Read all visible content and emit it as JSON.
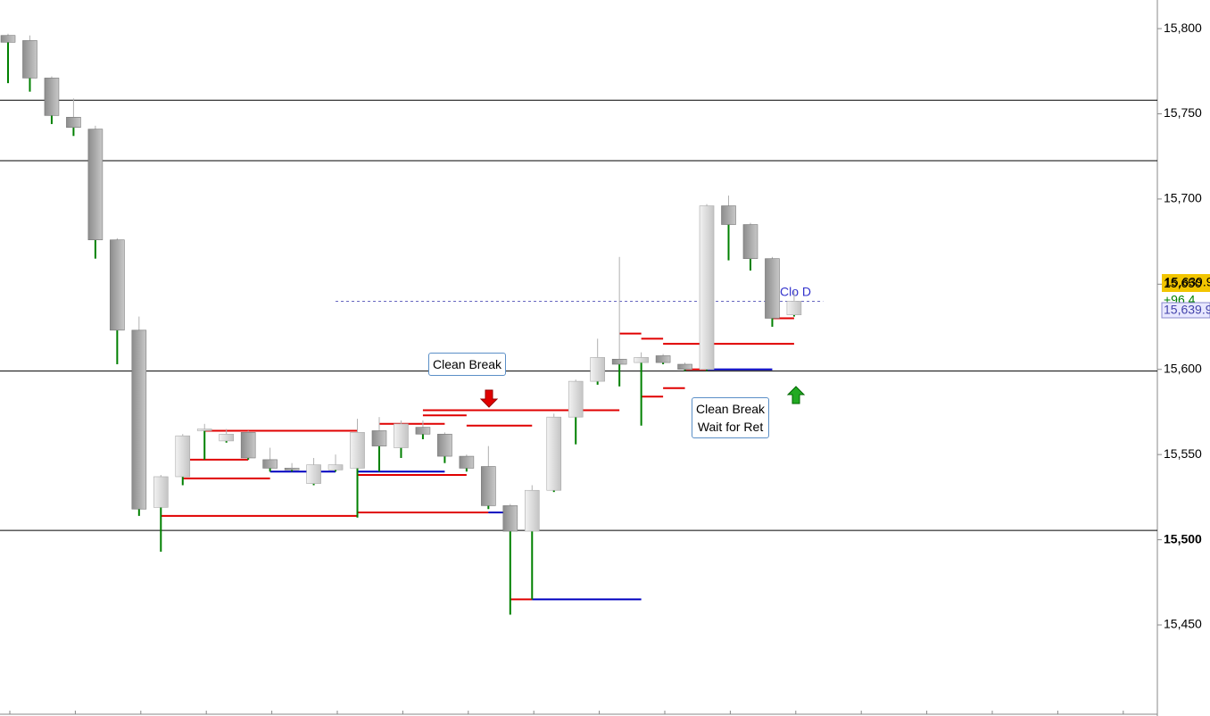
{
  "chart_data": {
    "type": "candlestick",
    "open": [
      15796,
      15793,
      15771,
      15748,
      15741,
      15676,
      15623,
      15519,
      15537,
      15564,
      15558,
      15563,
      15547,
      15542,
      15533,
      15541,
      15542,
      15564,
      15554,
      15566,
      15562,
      15549,
      15543,
      15520,
      15505,
      15529,
      15572,
      15593,
      15606,
      15604,
      15608,
      15603,
      15600,
      15696,
      15685,
      15665,
      15632
    ],
    "high": [
      15797,
      15796,
      15772,
      15759,
      15743,
      15677,
      15631,
      15538,
      15562,
      15568,
      15565,
      15564,
      15554,
      15545,
      15548,
      15550,
      15571,
      15572,
      15570,
      15570,
      15563,
      15550,
      15555,
      15521,
      15532,
      15574,
      15594,
      15618,
      15666,
      15610,
      15609,
      15604,
      15697,
      15702,
      15686,
      15666,
      15646
    ],
    "low": [
      15768,
      15763,
      15744,
      15737,
      15665,
      15603,
      15514,
      15493,
      15532,
      15547,
      15557,
      15547,
      15540,
      15540,
      15532,
      15540,
      15513,
      15540,
      15548,
      15559,
      15545,
      15540,
      15518,
      15456,
      15465,
      15528,
      15556,
      15591,
      15590,
      15567,
      15603,
      15599,
      15599,
      15664,
      15658,
      15625,
      15631
    ],
    "close": [
      15792,
      15771,
      15749,
      15742,
      15676,
      15623,
      15518,
      15537,
      15561,
      15565,
      15562,
      15548,
      15542,
      15541,
      15544,
      15544,
      15563,
      15555,
      15568,
      15562,
      15549,
      15542,
      15520,
      15505,
      15529,
      15572,
      15593,
      15607,
      15603,
      15607,
      15604,
      15600,
      15696,
      15685,
      15665,
      15630,
      15640
    ],
    "ylim": [
      15397.6,
      15816.8
    ],
    "yticks": [
      {
        "value": 15800,
        "label": "15,800"
      },
      {
        "value": 15750,
        "label": "15,750"
      },
      {
        "value": 15700,
        "label": "15,700"
      },
      {
        "value": 15650,
        "label": "15,650"
      },
      {
        "value": 15600,
        "label": "15,600"
      },
      {
        "value": 15550,
        "label": "15,550"
      },
      {
        "value": 15500,
        "label": "15,500"
      },
      {
        "value": 15450,
        "label": "15,450"
      }
    ],
    "bold_tick": 15500,
    "levels": [
      15758,
      15722.5,
      15599,
      15505.5
    ],
    "markers": [
      {
        "value": 15514,
        "from": 7,
        "to": 16,
        "color": "#e00000"
      },
      {
        "value": 15516,
        "from": 16,
        "to": 22,
        "color": "#e00000"
      },
      {
        "value": 15516,
        "from": 22,
        "to": 23,
        "color": "#0000c0"
      },
      {
        "value": 15564,
        "from": 9,
        "to": 16,
        "color": "#e00000"
      },
      {
        "value": 15536,
        "from": 8,
        "to": 12,
        "color": "#e00000"
      },
      {
        "value": 15547,
        "from": 8,
        "to": 11,
        "color": "#e00000"
      },
      {
        "value": 15540,
        "from": 12,
        "to": 15,
        "color": "#0000c0"
      },
      {
        "value": 15540,
        "from": 16,
        "to": 20,
        "color": "#0000c0"
      },
      {
        "value": 15538,
        "from": 16,
        "to": 21,
        "color": "#e00000"
      },
      {
        "value": 15568,
        "from": 17,
        "to": 20,
        "color": "#e00000"
      },
      {
        "value": 15573,
        "from": 19,
        "to": 21,
        "color": "#e00000"
      },
      {
        "value": 15576,
        "from": 19,
        "to": 28,
        "color": "#e00000"
      },
      {
        "value": 15567,
        "from": 21,
        "to": 24,
        "color": "#e00000"
      },
      {
        "value": 15465,
        "from": 23,
        "to": 24,
        "color": "#e00000"
      },
      {
        "value": 15465,
        "from": 24,
        "to": 29,
        "color": "#0000c0"
      },
      {
        "value": 15621,
        "from": 28,
        "to": 29,
        "color": "#e00000"
      },
      {
        "value": 15618,
        "from": 29,
        "to": 30,
        "color": "#e00000"
      },
      {
        "value": 15615,
        "from": 30,
        "to": 36,
        "color": "#e00000"
      },
      {
        "value": 15584,
        "from": 29,
        "to": 30,
        "color": "#e00000"
      },
      {
        "value": 15589,
        "from": 30,
        "to": 31,
        "color": "#e00000"
      },
      {
        "value": 15600,
        "from": 31,
        "to": 32,
        "color": "#e00000"
      },
      {
        "value": 15600,
        "from": 32,
        "to": 35,
        "color": "#0000c0"
      },
      {
        "value": 15630,
        "from": 35,
        "to": 36,
        "color": "#e00000"
      }
    ],
    "last_line": {
      "value": 15639.9,
      "from": 15,
      "to": 37
    },
    "annotations": [
      "Clean Break",
      "Clean Break",
      "Wait for Ret",
      "Clo D"
    ],
    "price_label": "15,639.9",
    "change_label": "+96.4",
    "bid_label": "15,639.9"
  }
}
